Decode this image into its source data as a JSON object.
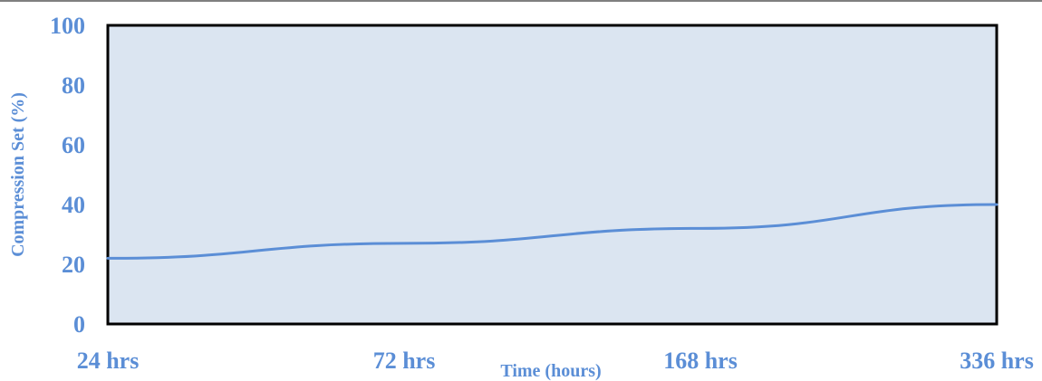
{
  "chart_data": {
    "type": "line",
    "title": "",
    "xlabel": "Time (hours)",
    "ylabel": "Compression Set (%)",
    "categories": [
      "24 hrs",
      "72 hrs",
      "168 hrs",
      "336 hrs"
    ],
    "series": [
      {
        "values": [
          22,
          27,
          32,
          40
        ]
      }
    ],
    "ylim": [
      0,
      100
    ],
    "yticks": [
      "0",
      "20",
      "40",
      "60",
      "80",
      "100"
    ],
    "grid": false,
    "legend": "none",
    "colors": {
      "line": "#5b8ed6",
      "plot_background": "#dbe5f1",
      "frame": "#000000",
      "text": "#5b8ed6"
    }
  }
}
